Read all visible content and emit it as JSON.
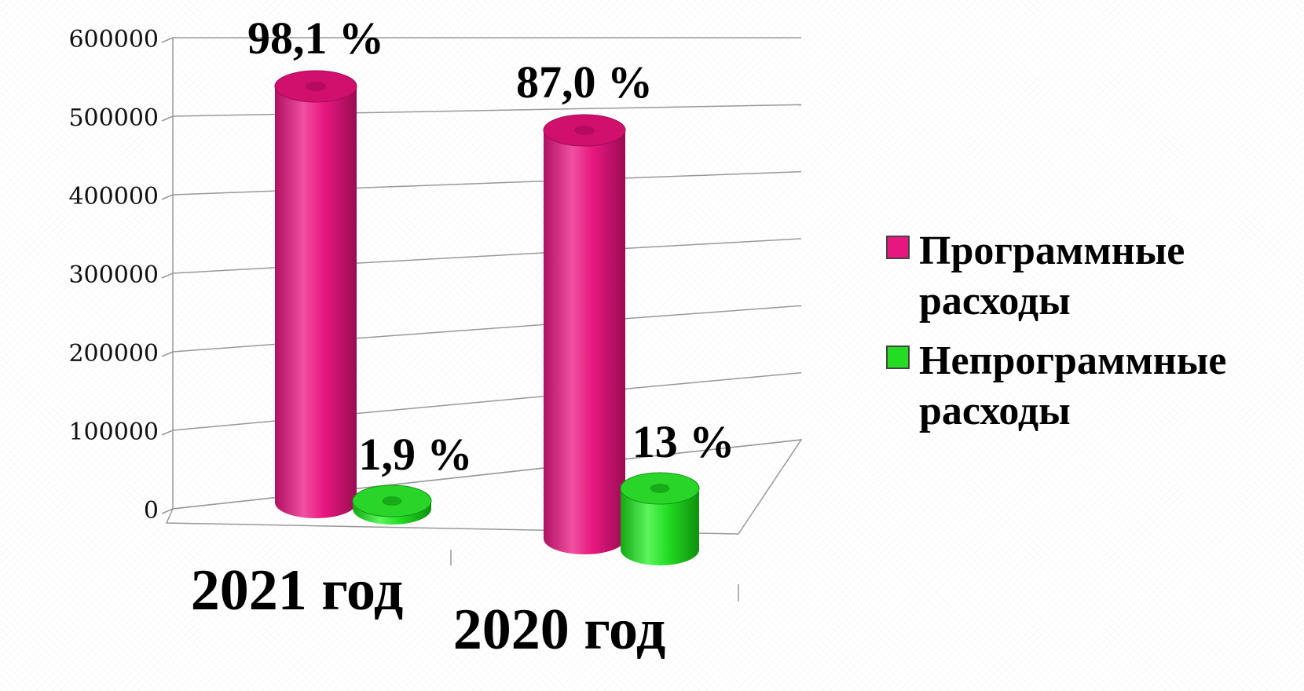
{
  "chart_data": {
    "type": "bar",
    "categories": [
      "2021 год",
      "2020 год"
    ],
    "series": [
      {
        "name": "Программные расходы",
        "color": "#e8177f",
        "values": [
          530000,
          520000
        ],
        "labels": [
          "98,1 %",
          "87,0 %"
        ]
      },
      {
        "name": "Непрограммные расходы",
        "color": "#22dd22",
        "values": [
          10000,
          78000
        ],
        "labels": [
          "1,9 %",
          "13 %"
        ]
      }
    ],
    "yticks": [
      "0",
      "100000",
      "200000",
      "300000",
      "400000",
      "500000",
      "600000"
    ],
    "ylim": [
      0,
      600000
    ],
    "grid": true,
    "legend_position": "right",
    "title": "",
    "xlabel": "",
    "ylabel": ""
  }
}
